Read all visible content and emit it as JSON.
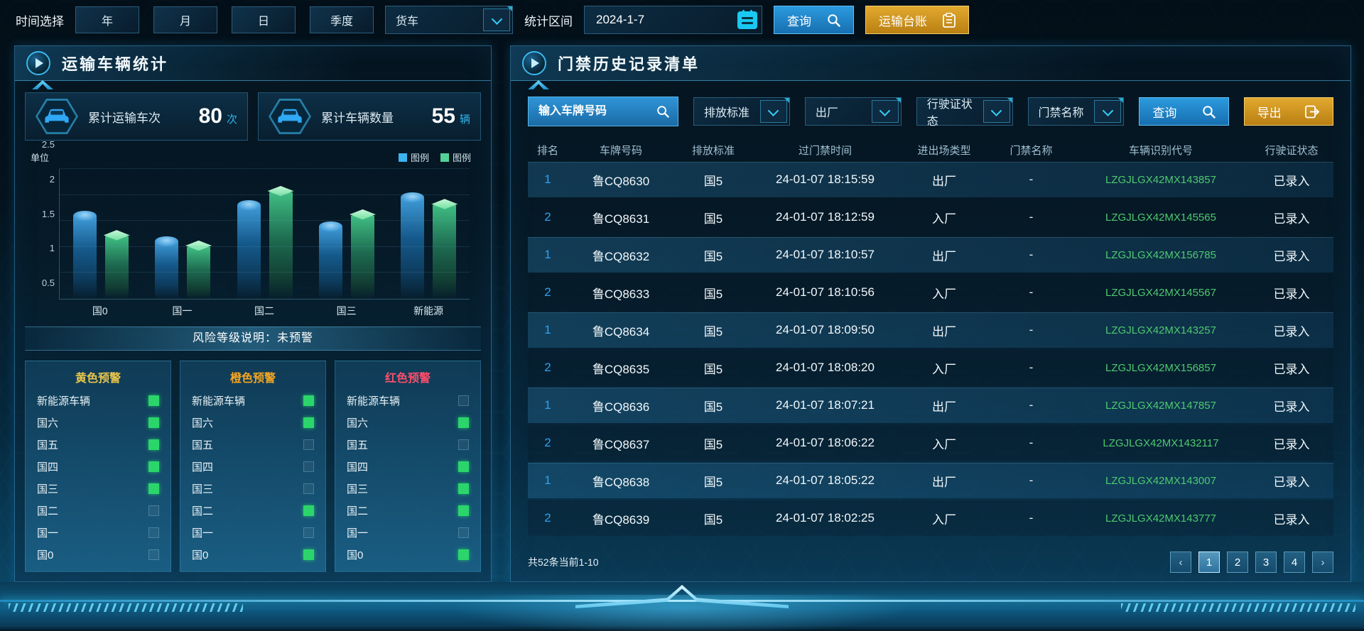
{
  "colors": {
    "accent_cyan": "#35cdf5",
    "button_blue": "#1f7fc0",
    "button_gold": "#d29b22",
    "bar_blue": "#3bb3f0",
    "bar_green": "#52d29a",
    "rank_blue": "#2fa1f0",
    "vin_green": "#4ec96f"
  },
  "topbar": {
    "time_label": "时间选择",
    "time_buttons": [
      "年",
      "月",
      "日",
      "季度"
    ],
    "vehicle_select": "货车",
    "range_label": "统计区间",
    "date_value": "2024-1-7",
    "search_label": "查询",
    "ledger_label": "运输台账"
  },
  "left_panel": {
    "title": "运输车辆统计",
    "stats": [
      {
        "label": "累计运输车次",
        "value": "80",
        "unit": "次"
      },
      {
        "label": "累计车辆数量",
        "value": "55",
        "unit": "辆"
      }
    ],
    "risk_note": "风险等级说明：未预警",
    "warnings": [
      {
        "title": "黄色预警",
        "color": "#e9c64b",
        "items": [
          {
            "label": "新能源车辆",
            "checked": true
          },
          {
            "label": "国六",
            "checked": true
          },
          {
            "label": "国五",
            "checked": true
          },
          {
            "label": "国四",
            "checked": true
          },
          {
            "label": "国三",
            "checked": true
          },
          {
            "label": "国二",
            "checked": false
          },
          {
            "label": "国一",
            "checked": false
          },
          {
            "label": "国0",
            "checked": false
          }
        ]
      },
      {
        "title": "橙色预警",
        "color": "#f5a623",
        "items": [
          {
            "label": "新能源车辆",
            "checked": true
          },
          {
            "label": "国六",
            "checked": true
          },
          {
            "label": "国五",
            "checked": false
          },
          {
            "label": "国四",
            "checked": false
          },
          {
            "label": "国三",
            "checked": false
          },
          {
            "label": "国二",
            "checked": true
          },
          {
            "label": "国一",
            "checked": false
          },
          {
            "label": "国0",
            "checked": true
          }
        ]
      },
      {
        "title": "红色预警",
        "color": "#ff4d6b",
        "items": [
          {
            "label": "新能源车辆",
            "checked": false
          },
          {
            "label": "国六",
            "checked": true
          },
          {
            "label": "国五",
            "checked": false
          },
          {
            "label": "国四",
            "checked": true
          },
          {
            "label": "国三",
            "checked": true
          },
          {
            "label": "国二",
            "checked": true
          },
          {
            "label": "国一",
            "checked": false
          },
          {
            "label": "国0",
            "checked": true
          }
        ]
      }
    ]
  },
  "chart_data": {
    "type": "bar",
    "title": "",
    "unit_label": "单位",
    "categories": [
      "国0",
      "国一",
      "国二",
      "国三",
      "新能源"
    ],
    "series": [
      {
        "name": "图例",
        "color": "#3bb3f0",
        "values": [
          1.6,
          1.1,
          1.8,
          1.4,
          1.95
        ]
      },
      {
        "name": "图例",
        "color": "#52d29a",
        "values": [
          1.2,
          1.0,
          2.05,
          1.6,
          1.8
        ]
      }
    ],
    "ylim": [
      0,
      2.5
    ],
    "yticks": [
      0.5,
      1,
      1.5,
      2,
      2.5
    ],
    "grid": true,
    "legend_position": "top-right"
  },
  "right_panel": {
    "title": "门禁历史记录清单",
    "filters": {
      "plate_placeholder": "输入车牌号码",
      "dropdowns": [
        "排放标准",
        "出厂",
        "行驶证状态",
        "门禁名称"
      ],
      "search_label": "查询",
      "export_label": "导出"
    },
    "table": {
      "headers": [
        "排名",
        "车牌号码",
        "排放标准",
        "过门禁时间",
        "进出场类型",
        "门禁名称",
        "车辆识别代号",
        "行驶证状态"
      ],
      "rows": [
        {
          "rank": "1",
          "plate": "鲁CQ8630",
          "standard": "国5",
          "time": "24-01-07 18:15:59",
          "direction": "出厂",
          "gate": "-",
          "vin": "LZGJLGX42MX143857",
          "license": "已录入"
        },
        {
          "rank": "2",
          "plate": "鲁CQ8631",
          "standard": "国5",
          "time": "24-01-07 18:12:59",
          "direction": "入厂",
          "gate": "-",
          "vin": "LZGJLGX42MX145565",
          "license": "已录入"
        },
        {
          "rank": "1",
          "plate": "鲁CQ8632",
          "standard": "国5",
          "time": "24-01-07 18:10:57",
          "direction": "出厂",
          "gate": "-",
          "vin": "LZGJLGX42MX156785",
          "license": "已录入"
        },
        {
          "rank": "2",
          "plate": "鲁CQ8633",
          "standard": "国5",
          "time": "24-01-07 18:10:56",
          "direction": "入厂",
          "gate": "-",
          "vin": "LZGJLGX42MX145567",
          "license": "已录入"
        },
        {
          "rank": "1",
          "plate": "鲁CQ8634",
          "standard": "国5",
          "time": "24-01-07 18:09:50",
          "direction": "出厂",
          "gate": "-",
          "vin": "LZGJLGX42MX143257",
          "license": "已录入"
        },
        {
          "rank": "2",
          "plate": "鲁CQ8635",
          "standard": "国5",
          "time": "24-01-07 18:08:20",
          "direction": "入厂",
          "gate": "-",
          "vin": "LZGJLGX42MX156857",
          "license": "已录入"
        },
        {
          "rank": "1",
          "plate": "鲁CQ8636",
          "standard": "国5",
          "time": "24-01-07 18:07:21",
          "direction": "出厂",
          "gate": "-",
          "vin": "LZGJLGX42MX147857",
          "license": "已录入"
        },
        {
          "rank": "2",
          "plate": "鲁CQ8637",
          "standard": "国5",
          "time": "24-01-07 18:06:22",
          "direction": "入厂",
          "gate": "-",
          "vin": "LZGJLGX42MX1432117",
          "license": "已录入"
        },
        {
          "rank": "1",
          "plate": "鲁CQ8638",
          "standard": "国5",
          "time": "24-01-07 18:05:22",
          "direction": "出厂",
          "gate": "-",
          "vin": "LZGJLGX42MX143007",
          "license": "已录入"
        },
        {
          "rank": "2",
          "plate": "鲁CQ8639",
          "standard": "国5",
          "time": "24-01-07 18:02:25",
          "direction": "入厂",
          "gate": "-",
          "vin": "LZGJLGX42MX143777",
          "license": "已录入"
        }
      ]
    },
    "pagination": {
      "summary": "共52条当前1-10",
      "pages": [
        "1",
        "2",
        "3",
        "4"
      ],
      "current": "1",
      "prev_icon": "‹",
      "next_icon": "›"
    }
  }
}
